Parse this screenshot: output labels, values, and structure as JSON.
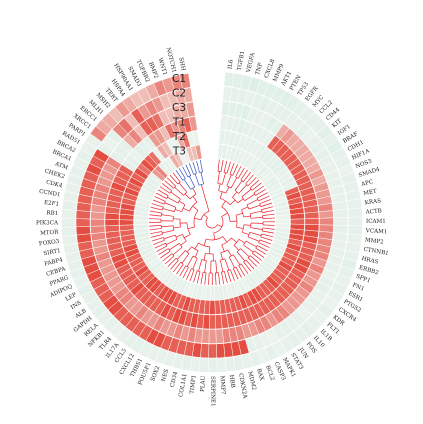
{
  "chart_data": {
    "type": "heatmap",
    "layout": "circular",
    "title": "",
    "colors": {
      "low": "#d5ece1",
      "mid": "#f4f6f2",
      "high": "#e23a2e",
      "dendrogram": "#e8202a",
      "dendrogram_small_cluster": "#3455b8",
      "gap": "#ffffff"
    },
    "tracks": [
      "C1",
      "C2",
      "C3",
      "T1",
      "T2",
      "T3"
    ],
    "genes": [
      "IL6",
      "TGFB1",
      "VEGFA",
      "TNF",
      "CXCL8",
      "MMP9",
      "AKT1",
      "PTEN",
      "TP53",
      "EGFR",
      "MYC",
      "CCL2",
      "CD44",
      "KIT",
      "IGF1",
      "BRAF",
      "CDH1",
      "HIF1A",
      "NOS3",
      "SMAD4",
      "APC",
      "MET",
      "KRAS",
      "ACTB",
      "ICAM1",
      "VCAM1",
      "MMP2",
      "CTNNB1",
      "HRAS",
      "ERBB2",
      "SPP1",
      "FN1",
      "ESR1",
      "PTGS2",
      "CXCR4",
      "KDR",
      "FLT1",
      "IL1B",
      "IL10",
      "FOS",
      "JUN",
      "STAT3",
      "MAPK1",
      "CASP3",
      "BCL2",
      "BAX",
      "MDM2",
      "CDKN2A",
      "HBB",
      "MMP7",
      "SERPINE1",
      "PLAU",
      "TIMP1",
      "COL1A1",
      "CD34",
      "NES",
      "SOX2",
      "POU5F1",
      "THBS1",
      "CXCL12",
      "CCL5",
      "IL17A",
      "TLR4",
      "NFKB1",
      "RELA",
      "GAPDH",
      "ALB",
      "INS",
      "LEP",
      "ADIPOQ",
      "PPARG",
      "CEBPA",
      "FABP4",
      "SIRT1",
      "FOXO3",
      "MTOR",
      "PIK3CA",
      "RB1",
      "E2F1",
      "CCND1",
      "CDK4",
      "CHEK2",
      "ATM",
      "BRCA1",
      "BRCA2",
      "RAD51",
      "PARP1",
      "XRCC1",
      "ERCC1",
      "MLH1",
      "MSH2",
      "TERT",
      "HSPA4",
      "HSP90AA1",
      "SMAD3",
      "TGFBR2",
      "BMP2",
      "WNT1",
      "NOTCH1",
      "SHH"
    ],
    "values": [
      [
        -0.6,
        -0.4,
        -0.6,
        -0.4,
        -0.5,
        -0.4
      ],
      [
        -0.6,
        -0.5,
        -0.6,
        -0.5,
        -0.4,
        -0.5
      ],
      [
        -0.6,
        -0.5,
        -0.6,
        -0.4,
        -0.5,
        -0.3
      ],
      [
        -0.7,
        -0.4,
        -0.7,
        -0.6,
        -0.4,
        -0.5
      ],
      [
        -0.6,
        -0.5,
        -0.4,
        -0.5,
        -0.4,
        -0.5
      ],
      [
        -0.6,
        -0.6,
        -0.4,
        -0.5,
        -0.4,
        -0.4
      ],
      [
        -0.6,
        -0.4,
        -0.4,
        -0.5,
        -0.5,
        -0.4
      ],
      [
        -0.6,
        -0.5,
        -0.6,
        -0.5,
        -0.4,
        -0.4
      ],
      [
        -0.6,
        -0.5,
        -0.5,
        -0.4,
        -0.5,
        -0.3
      ],
      [
        -0.5,
        -0.4,
        0.4,
        0.8,
        -0.5,
        -0.5
      ],
      [
        -0.5,
        -0.4,
        0.5,
        0.8,
        -0.6,
        -0.3
      ],
      [
        -0.5,
        -0.5,
        0.4,
        0.8,
        -0.5,
        -0.5
      ],
      [
        -0.5,
        -0.3,
        0.4,
        0.8,
        -0.6,
        -0.3
      ],
      [
        -0.6,
        -0.4,
        0.4,
        0.8,
        -0.6,
        -0.3
      ],
      [
        -0.5,
        -0.5,
        0.4,
        0.8,
        -0.4,
        -0.5
      ],
      [
        -0.6,
        -0.5,
        0.4,
        0.8,
        -0.4,
        -0.5
      ],
      [
        -0.5,
        -0.4,
        0.4,
        0.8,
        -0.5,
        -0.4
      ],
      [
        -0.5,
        -0.4,
        0.5,
        0.8,
        -0.5,
        -0.3
      ],
      [
        -0.3,
        -0.4,
        0.4,
        0.8,
        0.8,
        -0.5
      ],
      [
        -0.5,
        -0.4,
        0.5,
        0.8,
        0.9,
        -0.3
      ],
      [
        -0.5,
        -0.4,
        0.5,
        0.8,
        0.8,
        -0.5
      ],
      [
        -0.5,
        -0.4,
        0.5,
        0.8,
        0.9,
        -0.4
      ],
      [
        -0.5,
        -0.4,
        0.6,
        0.8,
        0.9,
        -0.4
      ],
      [
        -0.5,
        -0.5,
        0.5,
        0.8,
        0.9,
        -0.3
      ],
      [
        -0.5,
        -0.4,
        0.6,
        0.8,
        0.8,
        -0.3
      ],
      [
        -0.5,
        -0.5,
        0.6,
        0.9,
        0.9,
        -0.3
      ],
      [
        -0.4,
        -0.4,
        0.6,
        0.9,
        0.9,
        -0.5
      ],
      [
        -0.4,
        -0.4,
        0.6,
        0.9,
        0.9,
        -0.5
      ],
      [
        -0.5,
        -0.4,
        0.6,
        0.8,
        0.8,
        -0.5
      ],
      [
        -0.6,
        -0.4,
        0.6,
        0.8,
        0.9,
        -0.3
      ],
      [
        -0.5,
        -0.4,
        0.5,
        0.8,
        0.8,
        -0.4
      ],
      [
        -0.4,
        -0.3,
        0.6,
        0.9,
        0.8,
        -0.5
      ],
      [
        -0.5,
        -0.5,
        0.5,
        0.9,
        0.8,
        -0.4
      ],
      [
        -0.4,
        -0.5,
        0.5,
        0.8,
        0.9,
        -0.3
      ],
      [
        -0.3,
        -0.4,
        0.6,
        0.8,
        0.8,
        -0.4
      ],
      [
        -0.5,
        -0.4,
        0.5,
        0.8,
        0.8,
        -0.4
      ],
      [
        -0.3,
        -0.4,
        0.5,
        0.8,
        0.8,
        -0.4
      ],
      [
        -0.4,
        -0.3,
        0.5,
        0.8,
        0.9,
        -0.3
      ],
      [
        -0.5,
        -0.4,
        0.5,
        0.8,
        0.8,
        -0.5
      ],
      [
        -0.4,
        -0.4,
        0.6,
        0.8,
        0.8,
        -0.4
      ],
      [
        -0.5,
        -0.5,
        0.6,
        0.8,
        0.8,
        -0.5
      ],
      [
        -0.4,
        -0.5,
        0.5,
        0.8,
        0.9,
        -0.5
      ],
      [
        -0.3,
        -0.3,
        0.6,
        0.8,
        0.9,
        -0.3
      ],
      [
        -0.5,
        -0.3,
        0.6,
        0.8,
        0.8,
        -0.4
      ],
      [
        -0.3,
        -0.4,
        0.5,
        0.8,
        0.9,
        -0.3
      ],
      [
        -0.5,
        -0.5,
        0.5,
        0.8,
        0.8,
        -0.4
      ],
      [
        -0.4,
        0.9,
        0.6,
        0.8,
        0.8,
        -0.3
      ],
      [
        -0.5,
        0.9,
        0.6,
        0.8,
        0.8,
        -0.4
      ],
      [
        -0.5,
        0.9,
        0.6,
        0.8,
        0.8,
        -0.5
      ],
      [
        -0.4,
        0.9,
        0.5,
        0.8,
        0.8,
        -0.5
      ],
      [
        -0.5,
        0.8,
        0.5,
        0.8,
        0.9,
        -0.4
      ],
      [
        -0.5,
        0.8,
        0.5,
        0.9,
        0.8,
        -0.4
      ],
      [
        -0.4,
        0.9,
        0.5,
        0.8,
        0.8,
        -0.3
      ],
      [
        -0.5,
        0.8,
        0.6,
        0.9,
        0.8,
        -0.5
      ],
      [
        -0.4,
        0.8,
        0.5,
        0.8,
        0.8,
        -0.4
      ],
      [
        -0.4,
        0.8,
        0.6,
        0.9,
        0.9,
        -0.3
      ],
      [
        -0.4,
        0.8,
        0.5,
        0.9,
        0.8,
        -0.3
      ],
      [
        -0.4,
        0.9,
        0.5,
        0.8,
        0.8,
        -0.5
      ],
      [
        -0.4,
        0.9,
        0.6,
        0.9,
        0.9,
        -0.4
      ],
      [
        -0.5,
        0.8,
        0.5,
        0.8,
        0.9,
        -0.5
      ],
      [
        -0.5,
        0.8,
        0.5,
        0.8,
        0.9,
        -0.4
      ],
      [
        -0.4,
        0.8,
        0.6,
        0.8,
        0.8,
        -0.4
      ],
      [
        -0.3,
        0.8,
        0.5,
        0.8,
        0.9,
        -0.3
      ],
      [
        -0.4,
        0.8,
        0.5,
        0.8,
        0.9,
        -0.3
      ],
      [
        -0.4,
        0.9,
        0.6,
        0.9,
        0.8,
        -0.3
      ],
      [
        -0.5,
        0.9,
        0.6,
        0.8,
        0.8,
        -0.5
      ],
      [
        -0.4,
        0.8,
        0.5,
        0.8,
        0.9,
        -0.3
      ],
      [
        -0.5,
        0.8,
        0.5,
        0.8,
        0.8,
        -0.4
      ],
      [
        -0.5,
        0.8,
        0.5,
        0.8,
        0.8,
        -0.4
      ],
      [
        -0.4,
        0.9,
        0.5,
        0.9,
        0.8,
        -0.5
      ],
      [
        -0.5,
        0.9,
        0.5,
        0.9,
        0.9,
        -0.4
      ],
      [
        -0.4,
        0.9,
        0.6,
        0.8,
        0.9,
        -0.4
      ],
      [
        -0.4,
        0.8,
        0.5,
        0.8,
        0.8,
        -0.4
      ],
      [
        -0.4,
        0.8,
        0.5,
        0.8,
        0.8,
        -0.5
      ],
      [
        -0.4,
        0.9,
        0.6,
        0.8,
        0.8,
        -0.5
      ],
      [
        -0.5,
        0.9,
        0.6,
        0.8,
        0.8,
        -0.5
      ],
      [
        -0.5,
        0.8,
        0.6,
        0.9,
        0.9,
        -0.3
      ],
      [
        -0.4,
        0.8,
        0.5,
        0.9,
        0.9,
        -0.4
      ],
      [
        -0.5,
        0.8,
        0.5,
        0.8,
        0.9,
        -0.5
      ],
      [
        -0.4,
        0.8,
        0.6,
        0.8,
        0.9,
        -0.5
      ],
      [
        -0.4,
        0.8,
        0.6,
        0.8,
        0.8,
        -0.4
      ],
      [
        -0.5,
        0.8,
        0.6,
        0.8,
        0.8,
        -0.3
      ],
      [
        -0.5,
        0.8,
        0.5,
        0.9,
        0.9,
        -0.3
      ],
      [
        -0.4,
        0.9,
        0.5,
        0.8,
        0.8,
        -0.3
      ],
      [
        -0.5,
        0.8,
        0.5,
        0.8,
        0.9,
        -0.5
      ],
      [
        -0.4,
        0.9,
        0.6,
        0.8,
        0.8,
        -0.4
      ],
      [
        -0.4,
        -0.4,
        -0.5,
        -0.5,
        0.9,
        -0.5
      ],
      [
        0.6,
        -0.3,
        -0.5,
        -0.5,
        0.7,
        -0.4
      ],
      [
        0.4,
        -0.5,
        -0.5,
        -0.3,
        0.9,
        0.5
      ],
      [
        0.4,
        0.6,
        0.4,
        -0.6,
        0.8,
        0.6
      ],
      [
        0.3,
        0.7,
        0.6,
        -0.5,
        0.7,
        -0.4
      ],
      [
        0.5,
        0.3,
        0.3,
        -0.5,
        -0.3,
        -0.4
      ],
      [
        0.4,
        0.8,
        0.8,
        0.5,
        0.4,
        -0.3
      ],
      [
        0.3,
        0.5,
        0.8,
        0.5,
        0.3,
        0.4
      ],
      [
        0.3,
        0.6,
        0.7,
        0.3,
        -0.3,
        0.3
      ],
      [
        0.4,
        0.5,
        0.3,
        0.7,
        -0.3,
        -0.3
      ],
      [
        0.6,
        0.3,
        0.3,
        0.5,
        0.4,
        -0.3
      ],
      [
        0.5,
        0.3,
        0.4,
        0.6,
        0.7,
        0.3
      ],
      [
        0.6,
        0.4,
        0.4,
        0.8,
        -0.3,
        0.3
      ],
      [
        0.6,
        0.4,
        0.5,
        0.5,
        -0.3,
        0.5
      ]
    ]
  }
}
